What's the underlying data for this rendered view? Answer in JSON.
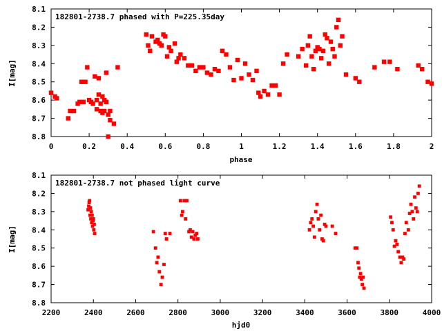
{
  "chart_data": [
    {
      "type": "scatter",
      "title": "182801-2738.7 phased with P=225.35day",
      "xlabel": "phase",
      "ylabel": "I[mag]",
      "xlim": [
        0,
        2
      ],
      "ylim": [
        8.8,
        8.1
      ],
      "y_inverted": true,
      "grid": false,
      "legend": "none",
      "marker_color": "#ff0000",
      "xticks": [
        "0",
        "0.2",
        "0.4",
        "0.6",
        "0.8",
        "1",
        "1.2",
        "1.4",
        "1.6",
        "1.8",
        "2"
      ],
      "yticks": [
        "8.1",
        "8.2",
        "8.3",
        "8.4",
        "8.5",
        "8.6",
        "8.7",
        "8.8"
      ],
      "series": [
        {
          "x": [
            0.0,
            0.02,
            0.03,
            0.09,
            0.1,
            0.12,
            0.14,
            0.15,
            0.16,
            0.17,
            0.18,
            0.19,
            0.2,
            0.21,
            0.22,
            0.23,
            0.24,
            0.24,
            0.25,
            0.25,
            0.26,
            0.26,
            0.27,
            0.27,
            0.28,
            0.28,
            0.29,
            0.29,
            0.3,
            0.3,
            0.31,
            0.31,
            0.33,
            0.35,
            0.5,
            0.51,
            0.52,
            0.53,
            0.55,
            0.56,
            0.57,
            0.58,
            0.59,
            0.6,
            0.61,
            0.62,
            0.63,
            0.65,
            0.66,
            0.67,
            0.68,
            0.7,
            0.72,
            0.74,
            0.76,
            0.78,
            0.8,
            0.82,
            0.84,
            0.86,
            0.88,
            0.9,
            0.92,
            0.94,
            0.96,
            0.98,
            1.0,
            1.02,
            1.04,
            1.06,
            1.08,
            1.09,
            1.1,
            1.12,
            1.14,
            1.16,
            1.18,
            1.2,
            1.22,
            1.24,
            1.3,
            1.32,
            1.34,
            1.35,
            1.36,
            1.37,
            1.38,
            1.39,
            1.4,
            1.41,
            1.42,
            1.43,
            1.44,
            1.45,
            1.46,
            1.47,
            1.48,
            1.49,
            1.5,
            1.51,
            1.52,
            1.53,
            1.55,
            1.6,
            1.62,
            1.7,
            1.75,
            1.78,
            1.82,
            1.93,
            1.95,
            1.98,
            2.0
          ],
          "y": [
            8.56,
            8.58,
            8.59,
            8.7,
            8.66,
            8.66,
            8.62,
            8.61,
            8.5,
            8.61,
            8.5,
            8.42,
            8.6,
            8.61,
            8.62,
            8.47,
            8.6,
            8.65,
            8.48,
            8.57,
            8.62,
            8.66,
            8.58,
            8.67,
            8.6,
            8.66,
            8.45,
            8.61,
            8.68,
            8.8,
            8.71,
            8.66,
            8.73,
            8.42,
            8.24,
            8.3,
            8.33,
            8.25,
            8.28,
            8.27,
            8.29,
            8.3,
            8.24,
            8.25,
            8.36,
            8.31,
            8.33,
            8.29,
            8.39,
            8.37,
            8.35,
            8.37,
            8.41,
            8.41,
            8.44,
            8.42,
            8.42,
            8.45,
            8.46,
            8.43,
            8.44,
            8.33,
            8.35,
            8.42,
            8.49,
            8.38,
            8.48,
            8.4,
            8.46,
            8.49,
            8.44,
            8.56,
            8.58,
            8.55,
            8.57,
            8.52,
            8.52,
            8.57,
            8.4,
            8.35,
            8.36,
            8.32,
            8.41,
            8.3,
            8.25,
            8.36,
            8.43,
            8.33,
            8.31,
            8.32,
            8.37,
            8.33,
            8.24,
            8.26,
            8.4,
            8.28,
            8.32,
            8.36,
            8.2,
            8.16,
            8.3,
            8.25,
            8.46,
            8.48,
            8.5,
            8.42,
            8.39,
            8.39,
            8.43,
            8.41,
            8.43,
            8.5,
            8.51
          ]
        }
      ]
    },
    {
      "type": "scatter",
      "title": "182801-2738.7 not phased light curve",
      "xlabel": "hjd0",
      "ylabel": "I[mag]",
      "xlim": [
        2200,
        4000
      ],
      "ylim": [
        8.8,
        8.1
      ],
      "y_inverted": true,
      "grid": false,
      "legend": "none",
      "marker_color": "#ff0000",
      "xticks": [
        "2200",
        "2400",
        "2600",
        "2800",
        "3000",
        "3200",
        "3400",
        "3600",
        "3800",
        "4000"
      ],
      "yticks": [
        "8.1",
        "8.2",
        "8.3",
        "8.4",
        "8.5",
        "8.6",
        "8.7",
        "8.8"
      ],
      "series": [
        {
          "x": [
            2375,
            2378,
            2380,
            2382,
            2384,
            2386,
            2388,
            2390,
            2392,
            2394,
            2396,
            2398,
            2400,
            2402,
            2404,
            2406,
            2684,
            2694,
            2700,
            2706,
            2712,
            2720,
            2726,
            2734,
            2740,
            2746,
            2762,
            2812,
            2818,
            2822,
            2830,
            2836,
            2842,
            2852,
            2858,
            2864,
            2870,
            2876,
            2882,
            2888,
            2894,
            3422,
            3428,
            3434,
            3440,
            3446,
            3452,
            3458,
            3464,
            3470,
            3476,
            3482,
            3488,
            3494,
            3500,
            3530,
            3546,
            3638,
            3646,
            3652,
            3656,
            3660,
            3664,
            3668,
            3672,
            3676,
            3680,
            3806,
            3812,
            3818,
            3824,
            3830,
            3836,
            3842,
            3850,
            3856,
            3862,
            3868,
            3874,
            3880,
            3890,
            3896,
            3902,
            3908,
            3914,
            3920,
            3926,
            3932,
            3936,
            3942
          ],
          "y": [
            8.29,
            8.27,
            8.25,
            8.24,
            8.32,
            8.28,
            8.34,
            8.3,
            8.36,
            8.32,
            8.38,
            8.35,
            8.34,
            8.4,
            8.37,
            8.42,
            8.41,
            8.5,
            8.58,
            8.55,
            8.63,
            8.7,
            8.66,
            8.59,
            8.42,
            8.45,
            8.42,
            8.24,
            8.32,
            8.3,
            8.24,
            8.34,
            8.24,
            8.41,
            8.4,
            8.44,
            8.41,
            8.45,
            8.43,
            8.42,
            8.45,
            8.4,
            8.36,
            8.34,
            8.38,
            8.44,
            8.3,
            8.26,
            8.34,
            8.4,
            8.32,
            8.45,
            8.46,
            8.37,
            8.38,
            8.38,
            8.42,
            8.5,
            8.5,
            8.58,
            8.61,
            8.66,
            8.64,
            8.67,
            8.7,
            8.66,
            8.72,
            8.33,
            8.36,
            8.4,
            8.49,
            8.46,
            8.48,
            8.52,
            8.55,
            8.58,
            8.55,
            8.56,
            8.42,
            8.36,
            8.4,
            8.31,
            8.26,
            8.3,
            8.34,
            8.22,
            8.28,
            8.3,
            8.2,
            8.16
          ]
        }
      ]
    }
  ]
}
